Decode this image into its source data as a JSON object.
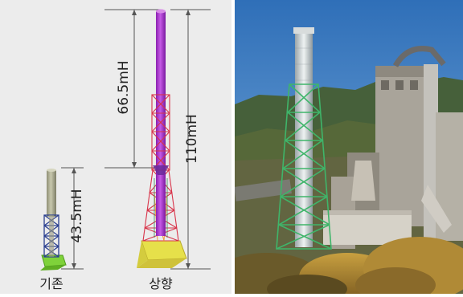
{
  "left_diagram": {
    "dimensions": {
      "existing_height": "43.5mH",
      "extension_height": "66.5mH",
      "total_height": "110mH"
    },
    "captions": {
      "existing": "기존",
      "raised": "상향"
    }
  },
  "right_photo": {},
  "colors": {
    "existing_body": "#b8b89a",
    "lattice_blue": "#2a3f8f",
    "base_green": "#7fd23a",
    "extension_pipe": "#b03ad6",
    "lattice_red": "#d8344a",
    "base_yellow": "#e6e04a",
    "sky": "#4a86c8",
    "hill": "#3f5a2e",
    "green_frame": "#3fb56a"
  }
}
